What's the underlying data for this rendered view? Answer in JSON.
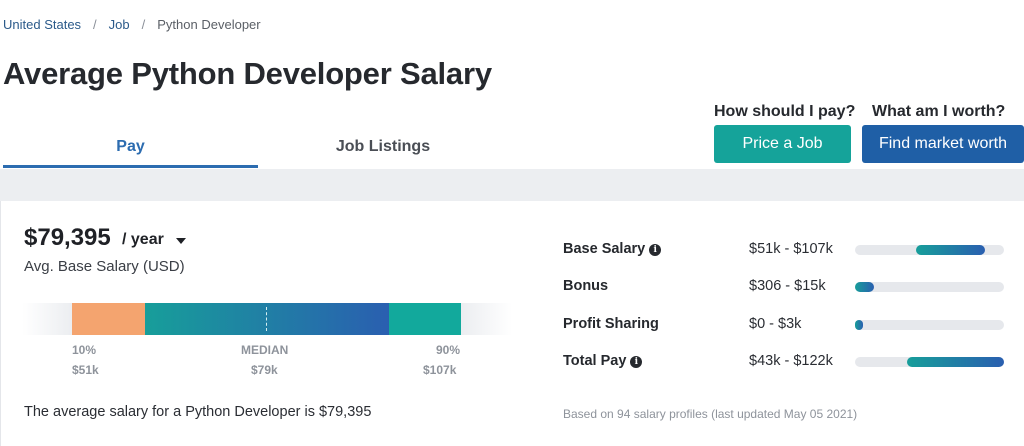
{
  "breadcrumb": {
    "items": [
      "United States",
      "Job",
      "Python Developer"
    ],
    "separator": "/"
  },
  "page_title": "Average Python Developer Salary",
  "tabs": [
    {
      "label": "Pay",
      "active": true
    },
    {
      "label": "Job Listings",
      "active": false
    }
  ],
  "cta": {
    "price_question": "How should I pay?",
    "price_button": "Price a Job",
    "worth_question": "What am I worth?",
    "worth_button": "Find market worth"
  },
  "salary": {
    "amount": "$79,395",
    "period": "/ year",
    "subtitle": "Avg. Base Salary (USD)"
  },
  "range": {
    "low_label": "10%",
    "low_value": "$51k",
    "median_label": "MEDIAN",
    "median_value": "$79k",
    "high_label": "90%",
    "high_value": "$107k"
  },
  "summary": "The average salary for a Python Developer is $79,395",
  "breakdown": [
    {
      "label": "Base Salary",
      "info": true,
      "value": "$51k - $107k",
      "fill_start": 0.41,
      "fill_end": 0.87
    },
    {
      "label": "Bonus",
      "info": false,
      "value": "$306 - $15k",
      "fill_start": 0.0,
      "fill_end": 0.13
    },
    {
      "label": "Profit Sharing",
      "info": false,
      "value": "$0 - $3k",
      "fill_start": 0.0,
      "fill_end": 0.05
    },
    {
      "label": "Total Pay",
      "info": true,
      "value": "$43k - $122k",
      "fill_start": 0.35,
      "fill_end": 1.0
    }
  ],
  "footnote": "Based on 94 salary profiles (last updated May 05 2021)",
  "colors": {
    "accent_blue": "#2c6cb0",
    "teal": "#15a39a",
    "dark_blue": "#1f5fa6",
    "orange": "#f4a46f"
  }
}
